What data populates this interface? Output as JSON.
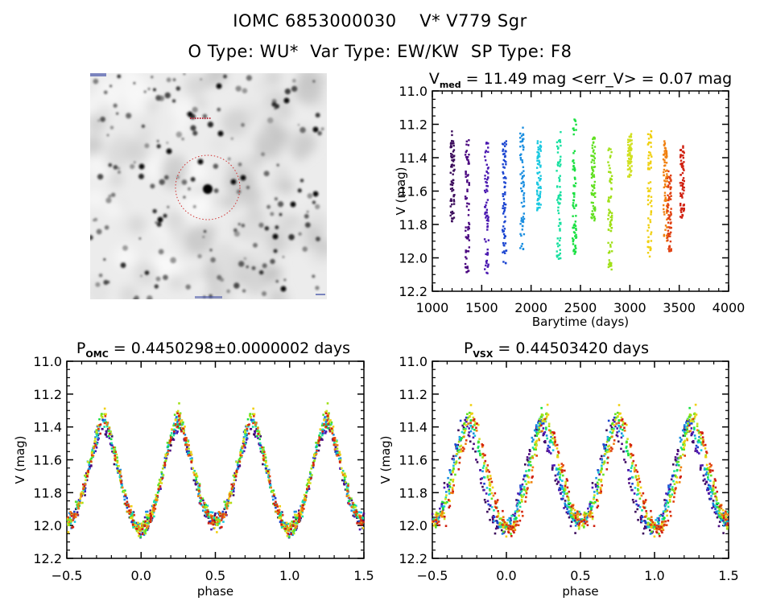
{
  "header": {
    "line1": "IOMC 6853000030    V* V779 Sgr",
    "line2": "O Type: WU*  Var Type: EW/KW  SP Type: F8"
  },
  "sky_image": {
    "description": "grayscale finding chart with red dotted circle around target star",
    "marker_color": "#d03030"
  },
  "chart_data": [
    {
      "id": "lightcurve",
      "type": "scatter",
      "title_main": "V",
      "title_sub": "med",
      "title_rest": " = 11.49 mag <err_V> = 0.07 mag",
      "xlabel": "Barytime (days)",
      "ylabel": "V (mag)",
      "xlim": [
        1000,
        4000
      ],
      "ylim": [
        12.2,
        11.0
      ],
      "y_inverted": true,
      "xticks": [
        1000,
        1500,
        2000,
        2500,
        3000,
        3500,
        4000
      ],
      "xtick_labels": [
        "1000",
        "1500",
        "2000",
        "2500",
        "3000",
        "3500",
        "4000"
      ],
      "yticks": [
        11.0,
        11.2,
        11.4,
        11.6,
        11.8,
        12.0,
        12.2
      ],
      "ytick_labels": [
        "11.0",
        "11.2",
        "11.4",
        "11.6",
        "11.8",
        "12.0",
        "12.2"
      ],
      "colormap": "rainbow by time",
      "seasons": [
        {
          "t": 1205,
          "vmin": 11.24,
          "vmax": 11.79,
          "color": "#3a0a5a"
        },
        {
          "t": 1355,
          "vmin": 11.27,
          "vmax": 12.11,
          "color": "#4b0880"
        },
        {
          "t": 1550,
          "vmin": 11.3,
          "vmax": 12.11,
          "color": "#4a18b0"
        },
        {
          "t": 1730,
          "vmin": 11.3,
          "vmax": 12.04,
          "color": "#1a44d0"
        },
        {
          "t": 1910,
          "vmin": 11.22,
          "vmax": 11.96,
          "color": "#1a8ee0"
        },
        {
          "t": 2080,
          "vmin": 11.3,
          "vmax": 11.72,
          "color": "#18c8e0"
        },
        {
          "t": 2280,
          "vmin": 11.24,
          "vmax": 12.02,
          "color": "#18e0a0"
        },
        {
          "t": 2440,
          "vmin": 11.15,
          "vmax": 11.98,
          "color": "#18e040"
        },
        {
          "t": 2630,
          "vmin": 11.27,
          "vmax": 11.78,
          "color": "#60e020"
        },
        {
          "t": 2800,
          "vmin": 11.34,
          "vmax": 12.07,
          "color": "#a0e018"
        },
        {
          "t": 3000,
          "vmin": 11.25,
          "vmax": 11.52,
          "color": "#d0e020"
        },
        {
          "t": 3200,
          "vmin": 11.24,
          "vmax": 12.01,
          "color": "#f0d010"
        },
        {
          "t": 3360,
          "vmin": 11.28,
          "vmax": 11.9,
          "color": "#f08010"
        },
        {
          "t": 3400,
          "vmin": 11.48,
          "vmax": 11.98,
          "color": "#e04010"
        },
        {
          "t": 3530,
          "vmin": 11.33,
          "vmax": 11.76,
          "color": "#d02010"
        }
      ]
    },
    {
      "id": "phase_omc",
      "type": "scatter",
      "title_main": "P",
      "title_sub": "OMC",
      "title_rest": " = 0.4450298±0.0000002 days",
      "period_days": 0.4450298,
      "period_err": 2e-07,
      "xlabel": "phase",
      "ylabel": "V (mag)",
      "xlim": [
        -0.5,
        1.5
      ],
      "ylim": [
        12.2,
        11.0
      ],
      "y_inverted": true,
      "xticks": [
        -0.5,
        0.0,
        0.5,
        1.0,
        1.5
      ],
      "xtick_labels": [
        "−0.5",
        "0.0",
        "0.5",
        "1.0",
        "1.5"
      ],
      "yticks": [
        11.0,
        11.2,
        11.4,
        11.6,
        11.8,
        12.0,
        12.2
      ],
      "ytick_labels": [
        "11.0",
        "11.2",
        "11.4",
        "11.6",
        "11.8",
        "12.0",
        "12.2"
      ],
      "curve": {
        "max_mag": 11.35,
        "primary_min_mag": 12.02,
        "secondary_min_mag": 11.98,
        "maxima_phase": [
          0.25,
          0.75
        ],
        "minima_phase": [
          0.0,
          0.5
        ]
      },
      "phase_shift_by_season": 0.0
    },
    {
      "id": "phase_vsx",
      "type": "scatter",
      "title_main": "P",
      "title_sub": "VSX",
      "title_rest": " = 0.44503420 days",
      "period_days": 0.4450342,
      "xlabel": "phase",
      "ylabel": "V (mag)",
      "xlim": [
        -0.5,
        1.5
      ],
      "ylim": [
        12.2,
        11.0
      ],
      "y_inverted": true,
      "xticks": [
        -0.5,
        0.0,
        0.5,
        1.0,
        1.5
      ],
      "xtick_labels": [
        "−0.5",
        "0.0",
        "0.5",
        "1.0",
        "1.5"
      ],
      "yticks": [
        11.0,
        11.2,
        11.4,
        11.6,
        11.8,
        12.0,
        12.2
      ],
      "ytick_labels": [
        "11.0",
        "11.2",
        "11.4",
        "11.6",
        "11.8",
        "12.0",
        "12.2"
      ],
      "curve": {
        "max_mag": 11.35,
        "primary_min_mag": 12.02,
        "secondary_min_mag": 11.98,
        "maxima_phase": [
          0.25,
          0.75
        ],
        "minima_phase": [
          0.0,
          0.5
        ]
      },
      "phase_shift_by_season": 0.06
    }
  ]
}
